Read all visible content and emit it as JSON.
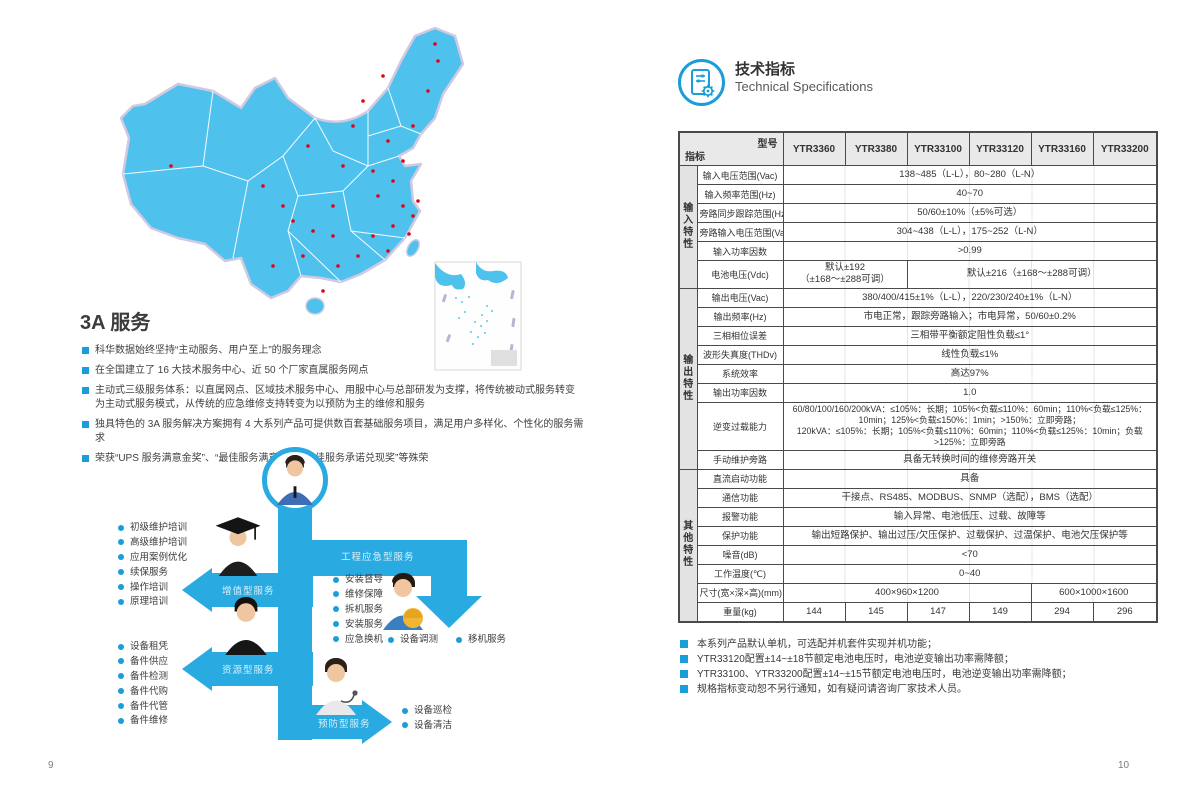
{
  "colors": {
    "accent_blue": "#1b9dd9",
    "arrow_blue": "#29abe2",
    "map_blue": "#4fc1ed",
    "dot_red": "#e60012",
    "table_border": "#4a4a4a",
    "table_header_bg": "#e9e9e9"
  },
  "left_page": {
    "page_number": "9",
    "section": {
      "title": "3A 服务",
      "bullets": [
        "科华数据始终坚持“主动服务、用户至上”的服务理念",
        "在全国建立了 16 大技术服务中心、近 50 个厂家直属服务网点",
        "主动式三级服务体系：以直属网点、区域技术服务中心、用服中心与总部研发为支撑，将传统被动式服务转变为主动式服务模式，从传统的应急维修支持转变为以预防为主的维修和服务",
        "独具特色的 3A 服务解决方案拥有 4 大系列产品可提供数百套基础服务项目，满足用户多样化、个性化的服务需求",
        "荣获“UPS 服务满意金奖”、“最佳服务满意奖”和“最佳服务承诺兑现奖”等殊荣"
      ]
    },
    "diagram": {
      "value_added_label": "增值型服务",
      "value_added_items": [
        "初级维护培训",
        "高级维护培训",
        "应用案例优化",
        "续保服务",
        "操作培训",
        "原理培训"
      ],
      "resource_label": "资源型服务",
      "resource_items": [
        "设备租凭",
        "备件供应",
        "备件检测",
        "备件代购",
        "备件代管",
        "备件维修"
      ],
      "engineering_label": "工程应急型服务",
      "engineering_items": [
        "安装督导",
        "维修保障",
        "拆机服务",
        "安装服务",
        "应急换机"
      ],
      "engineering_extra_items": [
        "设备调测",
        "移机服务"
      ],
      "preventive_label": "预防型服务",
      "preventive_items": [
        "设备巡检",
        "设备清洁"
      ]
    }
  },
  "right_page": {
    "page_number": "10",
    "header": {
      "title_zh": "技术指标",
      "title_en": "Technical Specifications"
    },
    "spec_table": {
      "corner_top": "型号",
      "corner_bottom": "指标",
      "models": [
        "YTR3360",
        "YTR3380",
        "YTR33100",
        "YTR33120",
        "YTR33160",
        "YTR33200"
      ],
      "groups": [
        {
          "name": "输入特性",
          "rows": [
            {
              "label": "输入电压范围(Vac)",
              "cells": [
                {
                  "span": 6,
                  "text": "138~485（L-L），80~280（L-N）"
                }
              ]
            },
            {
              "label": "输入频率范围(Hz)",
              "cells": [
                {
                  "span": 6,
                  "text": "40~70"
                }
              ]
            },
            {
              "label": "旁路同步跟踪范围(Hz)",
              "cells": [
                {
                  "span": 6,
                  "text": "50/60±10%（±5%可选）"
                }
              ]
            },
            {
              "label": "旁路输入电压范围(Vac)",
              "cells": [
                {
                  "span": 6,
                  "text": "304~438（L-L），175~252（L-N）"
                }
              ]
            },
            {
              "label": "输入功率因数",
              "cells": [
                {
                  "span": 6,
                  "text": ">0.99"
                }
              ]
            },
            {
              "label": "电池电压(Vdc)",
              "cells": [
                {
                  "span": 2,
                  "text": "默认±192\n（±168～±288可调）"
                },
                {
                  "span": 4,
                  "text": "默认±216（±168～±288可调）"
                }
              ]
            }
          ]
        },
        {
          "name": "输出特性",
          "rows": [
            {
              "label": "输出电压(Vac)",
              "cells": [
                {
                  "span": 6,
                  "text": "380/400/415±1%（L-L），220/230/240±1%（L-N）"
                }
              ]
            },
            {
              "label": "输出频率(Hz)",
              "cells": [
                {
                  "span": 6,
                  "text": "市电正常，跟踪旁路输入；市电异常，50/60±0.2%"
                }
              ]
            },
            {
              "label": "三相相位误差",
              "cells": [
                {
                  "span": 6,
                  "text": "三相带平衡额定阻性负载≤1°"
                }
              ]
            },
            {
              "label": "波形失真度(THDv)",
              "cells": [
                {
                  "span": 6,
                  "text": "线性负载≤1%"
                }
              ]
            },
            {
              "label": "系统效率",
              "cells": [
                {
                  "span": 6,
                  "text": "高达97%"
                }
              ]
            },
            {
              "label": "输出功率因数",
              "cells": [
                {
                  "span": 6,
                  "text": "1.0"
                }
              ]
            },
            {
              "label": "逆变过载能力",
              "cells": [
                {
                  "span": 6,
                  "text": "60/80/100/160/200kVA：≤105%：长期；105%<负载≤110%：60min；110%<负载≤125%：10min；125%<负载≤150%：1min；>150%：立即旁路；\n120kVA：≤105%：长期；105%<负载≤110%：60min；110%<负载≤125%：10min；负载>125%：立即旁路"
                }
              ]
            },
            {
              "label": "手动维护旁路",
              "cells": [
                {
                  "span": 6,
                  "text": "具备无转换时间的维修旁路开关"
                }
              ]
            }
          ]
        },
        {
          "name": "其他特性",
          "rows": [
            {
              "label": "直流启动功能",
              "cells": [
                {
                  "span": 6,
                  "text": "具备"
                }
              ]
            },
            {
              "label": "通信功能",
              "cells": [
                {
                  "span": 6,
                  "text": "干接点、RS485、MODBUS、SNMP（选配），BMS（选配）"
                }
              ]
            },
            {
              "label": "报警功能",
              "cells": [
                {
                  "span": 6,
                  "text": "输入异常、电池低压、过载、故障等"
                }
              ]
            },
            {
              "label": "保护功能",
              "cells": [
                {
                  "span": 6,
                  "text": "输出短路保护、输出过压/欠压保护、过载保护、过温保护、电池欠压保护等"
                }
              ]
            },
            {
              "label": "噪音(dB)",
              "cells": [
                {
                  "span": 6,
                  "text": "<70"
                }
              ]
            },
            {
              "label": "工作温度(℃)",
              "cells": [
                {
                  "span": 6,
                  "text": "0~40"
                }
              ]
            },
            {
              "label": "尺寸(宽×深×高)(mm)",
              "cells": [
                {
                  "span": 4,
                  "text": "400×960×1200"
                },
                {
                  "span": 2,
                  "text": "600×1000×1600"
                }
              ]
            },
            {
              "label": "重量(kg)",
              "cells": [
                {
                  "span": 1,
                  "text": "144"
                },
                {
                  "span": 1,
                  "text": "145"
                },
                {
                  "span": 1,
                  "text": "147"
                },
                {
                  "span": 1,
                  "text": "149"
                },
                {
                  "span": 1,
                  "text": "294"
                },
                {
                  "span": 1,
                  "text": "296"
                }
              ]
            }
          ]
        }
      ]
    },
    "footnotes": [
      "本系列产品默认单机，可选配并机套件实现并机功能；",
      "YTR33120配置±14~±18节额定电池电压时，电池逆变输出功率需降额；",
      "YTR33100、YTR33200配置±14~±15节额定电池电压时，电池逆变输出功率需降额；",
      "规格指标变动恕不另行通知，如有疑问请咨询厂家技术人员。"
    ]
  }
}
